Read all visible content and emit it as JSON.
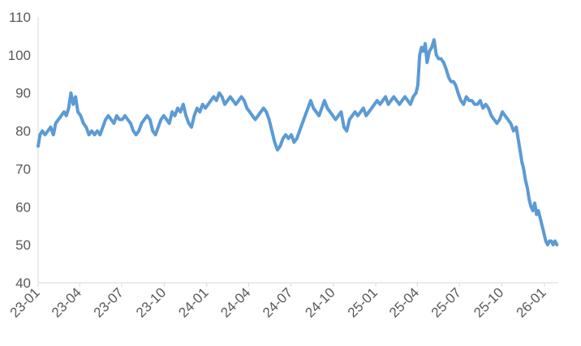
{
  "chart_data": {
    "type": "line",
    "title": "",
    "xlabel": "",
    "ylabel": "",
    "ylim": [
      40,
      110
    ],
    "yticks": [
      40,
      50,
      60,
      70,
      80,
      90,
      100,
      110
    ],
    "xlim": [
      "2023-01-01",
      "2026-01-31"
    ],
    "xticks": [
      {
        "label": "23-01",
        "date": "2023-01-01"
      },
      {
        "label": "23-04",
        "date": "2023-04-01"
      },
      {
        "label": "23-07",
        "date": "2023-07-01"
      },
      {
        "label": "23-10",
        "date": "2023-10-01"
      },
      {
        "label": "24-01",
        "date": "2024-01-01"
      },
      {
        "label": "24-04",
        "date": "2024-04-01"
      },
      {
        "label": "24-07",
        "date": "2024-07-01"
      },
      {
        "label": "24-10",
        "date": "2024-10-01"
      },
      {
        "label": "25-01",
        "date": "2025-01-01"
      },
      {
        "label": "25-04",
        "date": "2025-04-01"
      },
      {
        "label": "25-07",
        "date": "2025-07-01"
      },
      {
        "label": "25-10",
        "date": "2025-10-01"
      },
      {
        "label": "26-01",
        "date": "2026-01-01"
      }
    ],
    "grid": false,
    "legend": "none",
    "series": [
      {
        "color": "#5b9bd5",
        "points": [
          [
            "2023-01-01",
            76
          ],
          [
            "2023-01-05",
            79
          ],
          [
            "2023-01-10",
            80
          ],
          [
            "2023-01-16",
            79
          ],
          [
            "2023-01-22",
            80
          ],
          [
            "2023-01-28",
            81
          ],
          [
            "2023-02-03",
            79
          ],
          [
            "2023-02-08",
            82
          ],
          [
            "2023-02-14",
            83
          ],
          [
            "2023-02-20",
            84
          ],
          [
            "2023-02-26",
            85
          ],
          [
            "2023-03-03",
            84
          ],
          [
            "2023-03-08",
            86
          ],
          [
            "2023-03-13",
            90
          ],
          [
            "2023-03-18",
            87
          ],
          [
            "2023-03-23",
            89
          ],
          [
            "2023-03-28",
            85
          ],
          [
            "2023-04-03",
            84
          ],
          [
            "2023-04-09",
            82
          ],
          [
            "2023-04-15",
            81
          ],
          [
            "2023-04-21",
            79
          ],
          [
            "2023-04-27",
            80
          ],
          [
            "2023-05-03",
            79
          ],
          [
            "2023-05-09",
            80
          ],
          [
            "2023-05-15",
            79
          ],
          [
            "2023-05-21",
            81
          ],
          [
            "2023-05-27",
            83
          ],
          [
            "2023-06-02",
            84
          ],
          [
            "2023-06-08",
            83
          ],
          [
            "2023-06-14",
            82
          ],
          [
            "2023-06-20",
            84
          ],
          [
            "2023-06-26",
            83
          ],
          [
            "2023-07-02",
            83
          ],
          [
            "2023-07-08",
            84
          ],
          [
            "2023-07-14",
            83
          ],
          [
            "2023-07-20",
            82
          ],
          [
            "2023-07-26",
            80
          ],
          [
            "2023-08-01",
            79
          ],
          [
            "2023-08-07",
            80
          ],
          [
            "2023-08-13",
            82
          ],
          [
            "2023-08-19",
            83
          ],
          [
            "2023-08-25",
            84
          ],
          [
            "2023-08-31",
            83
          ],
          [
            "2023-09-06",
            80
          ],
          [
            "2023-09-12",
            79
          ],
          [
            "2023-09-18",
            81
          ],
          [
            "2023-09-24",
            83
          ],
          [
            "2023-09-30",
            84
          ],
          [
            "2023-10-06",
            83
          ],
          [
            "2023-10-12",
            82
          ],
          [
            "2023-10-18",
            85
          ],
          [
            "2023-10-24",
            84
          ],
          [
            "2023-10-30",
            86
          ],
          [
            "2023-11-05",
            85
          ],
          [
            "2023-11-11",
            87
          ],
          [
            "2023-11-17",
            84
          ],
          [
            "2023-11-23",
            82
          ],
          [
            "2023-11-29",
            81
          ],
          [
            "2023-12-05",
            84
          ],
          [
            "2023-12-11",
            86
          ],
          [
            "2023-12-17",
            85
          ],
          [
            "2023-12-23",
            87
          ],
          [
            "2023-12-29",
            86
          ],
          [
            "2024-01-04",
            87
          ],
          [
            "2024-01-10",
            88
          ],
          [
            "2024-01-16",
            89
          ],
          [
            "2024-01-22",
            88
          ],
          [
            "2024-01-28",
            90
          ],
          [
            "2024-02-03",
            89
          ],
          [
            "2024-02-09",
            87
          ],
          [
            "2024-02-15",
            88
          ],
          [
            "2024-02-21",
            89
          ],
          [
            "2024-02-27",
            88
          ],
          [
            "2024-03-04",
            87
          ],
          [
            "2024-03-10",
            88
          ],
          [
            "2024-03-16",
            89
          ],
          [
            "2024-03-22",
            88
          ],
          [
            "2024-03-28",
            86
          ],
          [
            "2024-04-03",
            85
          ],
          [
            "2024-04-09",
            84
          ],
          [
            "2024-04-15",
            83
          ],
          [
            "2024-04-21",
            84
          ],
          [
            "2024-04-27",
            85
          ],
          [
            "2024-05-03",
            86
          ],
          [
            "2024-05-09",
            85
          ],
          [
            "2024-05-15",
            83
          ],
          [
            "2024-05-21",
            80
          ],
          [
            "2024-05-27",
            77
          ],
          [
            "2024-06-02",
            75
          ],
          [
            "2024-06-08",
            76
          ],
          [
            "2024-06-14",
            78
          ],
          [
            "2024-06-20",
            79
          ],
          [
            "2024-06-26",
            78
          ],
          [
            "2024-07-02",
            79
          ],
          [
            "2024-07-08",
            77
          ],
          [
            "2024-07-14",
            78
          ],
          [
            "2024-07-20",
            80
          ],
          [
            "2024-07-26",
            82
          ],
          [
            "2024-08-01",
            84
          ],
          [
            "2024-08-07",
            86
          ],
          [
            "2024-08-13",
            88
          ],
          [
            "2024-08-19",
            86
          ],
          [
            "2024-08-25",
            85
          ],
          [
            "2024-08-31",
            84
          ],
          [
            "2024-09-06",
            86
          ],
          [
            "2024-09-12",
            88
          ],
          [
            "2024-09-18",
            86
          ],
          [
            "2024-09-24",
            85
          ],
          [
            "2024-09-30",
            84
          ],
          [
            "2024-10-06",
            83
          ],
          [
            "2024-10-12",
            84
          ],
          [
            "2024-10-18",
            85
          ],
          [
            "2024-10-24",
            81
          ],
          [
            "2024-10-30",
            80
          ],
          [
            "2024-11-05",
            83
          ],
          [
            "2024-11-11",
            84
          ],
          [
            "2024-11-17",
            85
          ],
          [
            "2024-11-23",
            84
          ],
          [
            "2024-11-29",
            85
          ],
          [
            "2024-12-05",
            86
          ],
          [
            "2024-12-11",
            84
          ],
          [
            "2024-12-17",
            85
          ],
          [
            "2024-12-23",
            86
          ],
          [
            "2024-12-29",
            87
          ],
          [
            "2025-01-04",
            88
          ],
          [
            "2025-01-10",
            87
          ],
          [
            "2025-01-16",
            88
          ],
          [
            "2025-01-22",
            89
          ],
          [
            "2025-01-28",
            87
          ],
          [
            "2025-02-03",
            88
          ],
          [
            "2025-02-09",
            89
          ],
          [
            "2025-02-15",
            88
          ],
          [
            "2025-02-21",
            87
          ],
          [
            "2025-02-27",
            88
          ],
          [
            "2025-03-05",
            89
          ],
          [
            "2025-03-11",
            88
          ],
          [
            "2025-03-17",
            87
          ],
          [
            "2025-03-23",
            89
          ],
          [
            "2025-03-29",
            90
          ],
          [
            "2025-04-02",
            92
          ],
          [
            "2025-04-06",
            100
          ],
          [
            "2025-04-10",
            102
          ],
          [
            "2025-04-14",
            101
          ],
          [
            "2025-04-18",
            103
          ],
          [
            "2025-04-22",
            98
          ],
          [
            "2025-04-27",
            101
          ],
          [
            "2025-05-02",
            102
          ],
          [
            "2025-05-07",
            104
          ],
          [
            "2025-05-12",
            100
          ],
          [
            "2025-05-17",
            99
          ],
          [
            "2025-05-22",
            99
          ],
          [
            "2025-05-28",
            98
          ],
          [
            "2025-06-03",
            96
          ],
          [
            "2025-06-08",
            94
          ],
          [
            "2025-06-13",
            93
          ],
          [
            "2025-06-18",
            93
          ],
          [
            "2025-06-23",
            92
          ],
          [
            "2025-06-28",
            90
          ],
          [
            "2025-07-04",
            88
          ],
          [
            "2025-07-10",
            87
          ],
          [
            "2025-07-16",
            89
          ],
          [
            "2025-07-22",
            88
          ],
          [
            "2025-07-28",
            88
          ],
          [
            "2025-08-03",
            87
          ],
          [
            "2025-08-09",
            87
          ],
          [
            "2025-08-15",
            88
          ],
          [
            "2025-08-21",
            86
          ],
          [
            "2025-08-27",
            87
          ],
          [
            "2025-09-02",
            86
          ],
          [
            "2025-09-08",
            84
          ],
          [
            "2025-09-14",
            83
          ],
          [
            "2025-09-20",
            82
          ],
          [
            "2025-09-26",
            83
          ],
          [
            "2025-10-02",
            85
          ],
          [
            "2025-10-08",
            84
          ],
          [
            "2025-10-14",
            83
          ],
          [
            "2025-10-20",
            82
          ],
          [
            "2025-10-26",
            80
          ],
          [
            "2025-11-01",
            81
          ],
          [
            "2025-11-05",
            78
          ],
          [
            "2025-11-09",
            75
          ],
          [
            "2025-11-13",
            72
          ],
          [
            "2025-11-17",
            70
          ],
          [
            "2025-11-21",
            67
          ],
          [
            "2025-11-25",
            65
          ],
          [
            "2025-11-29",
            62
          ],
          [
            "2025-12-03",
            60
          ],
          [
            "2025-12-07",
            59
          ],
          [
            "2025-12-11",
            61
          ],
          [
            "2025-12-15",
            58
          ],
          [
            "2025-12-19",
            59
          ],
          [
            "2025-12-23",
            57
          ],
          [
            "2025-12-27",
            55
          ],
          [
            "2025-12-31",
            53
          ],
          [
            "2026-01-04",
            51
          ],
          [
            "2026-01-08",
            50
          ],
          [
            "2026-01-12",
            51
          ],
          [
            "2026-01-16",
            51
          ],
          [
            "2026-01-20",
            50
          ],
          [
            "2026-01-24",
            51
          ],
          [
            "2026-01-28",
            50
          ]
        ]
      }
    ]
  }
}
